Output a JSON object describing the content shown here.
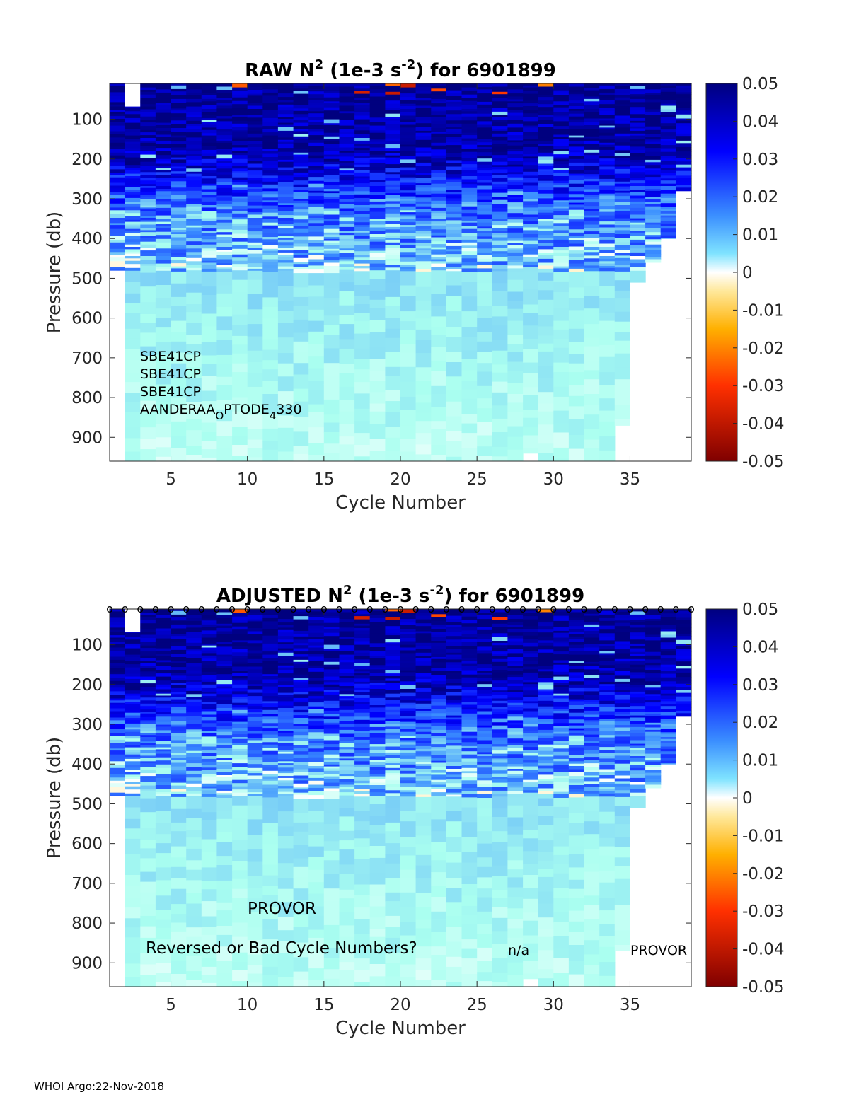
{
  "chart_data": [
    {
      "type": "heatmap",
      "panel": "raw",
      "title_parts": [
        "RAW N",
        "2",
        " (1e-3 s",
        "-2",
        ") for 6901899"
      ],
      "xlabel": "Cycle Number",
      "ylabel": "Pressure (db)",
      "xlim": [
        1,
        39
      ],
      "ylim": [
        960,
        10
      ],
      "xticks": [
        5,
        10,
        15,
        20,
        25,
        30,
        35
      ],
      "yticks": [
        100,
        200,
        300,
        400,
        500,
        600,
        700,
        800,
        900
      ],
      "colorbar": {
        "limits": [
          -0.05,
          0.05
        ],
        "ticks": [
          "0.05",
          "0.04",
          "0.03",
          "0.02",
          "0.01",
          "0",
          "-0.01",
          "-0.02",
          "-0.03",
          "-0.04",
          "-0.05"
        ]
      },
      "cycle_max_pressure": [
        480,
        960,
        960,
        960,
        960,
        960,
        960,
        960,
        960,
        960,
        960,
        960,
        960,
        960,
        960,
        960,
        960,
        960,
        960,
        960,
        960,
        960,
        960,
        960,
        960,
        960,
        960,
        940,
        960,
        960,
        960,
        960,
        960,
        870,
        510,
        460,
        400,
        280
      ],
      "sensor_labels": [
        "SBE41CP",
        "SBE41CP",
        "SBE41CP"
      ],
      "optode_label_parts": [
        "AANDERAA",
        "O",
        "PTODE",
        "4",
        "330"
      ],
      "top_markers": false
    },
    {
      "type": "heatmap",
      "panel": "adjusted",
      "title_parts": [
        "ADJUSTED N",
        "2",
        " (1e-3 s",
        "-2",
        ") for 6901899"
      ],
      "xlabel": "Cycle Number",
      "ylabel": "Pressure (db)",
      "xlim": [
        1,
        39
      ],
      "ylim": [
        960,
        10
      ],
      "xticks": [
        5,
        10,
        15,
        20,
        25,
        30,
        35
      ],
      "yticks": [
        100,
        200,
        300,
        400,
        500,
        600,
        700,
        800,
        900
      ],
      "colorbar": {
        "limits": [
          -0.05,
          0.05
        ],
        "ticks": [
          "0.05",
          "0.04",
          "0.03",
          "0.02",
          "0.01",
          "0",
          "-0.01",
          "-0.02",
          "-0.03",
          "-0.04",
          "-0.05"
        ]
      },
      "cycle_max_pressure": [
        480,
        960,
        960,
        960,
        960,
        960,
        960,
        960,
        960,
        960,
        960,
        960,
        960,
        960,
        960,
        960,
        960,
        960,
        960,
        960,
        960,
        960,
        960,
        960,
        960,
        960,
        960,
        940,
        960,
        960,
        960,
        960,
        960,
        870,
        510,
        460,
        400,
        280
      ],
      "annotations": {
        "platform": "PROVOR",
        "cycle_warning": "Reversed or Bad Cycle Numbers?",
        "na": "n/a",
        "platform_right": "PROVOR"
      },
      "top_markers": true,
      "marker_glyph": "o"
    }
  ],
  "footer": "WHOI Argo:22-Nov-2018"
}
